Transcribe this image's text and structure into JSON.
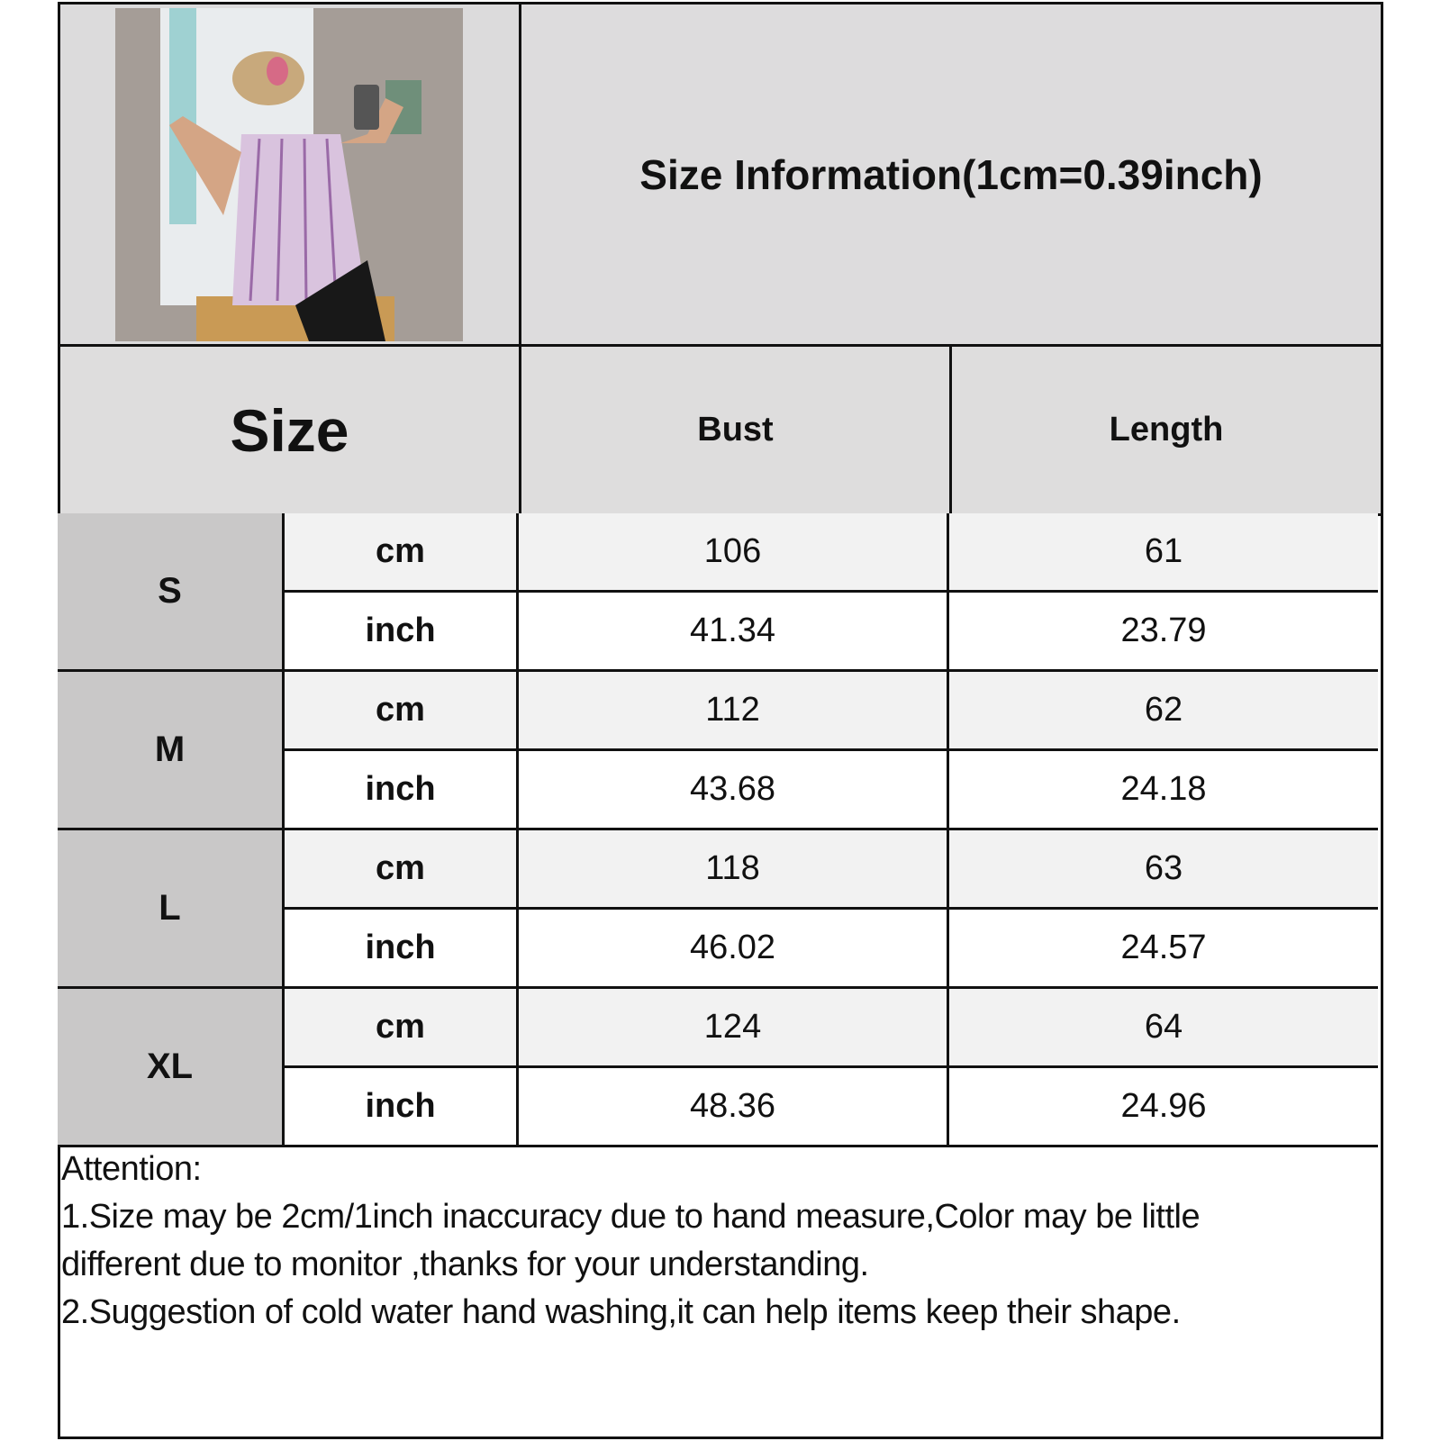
{
  "title": "Size Information(1cm=0.39inch)",
  "headers": {
    "size": "Size",
    "bust": "Bust",
    "length": "Length"
  },
  "rows": [
    {
      "size": "S",
      "cm": {
        "unit": "cm",
        "bust": "106",
        "length": "61"
      },
      "inch": {
        "unit": "inch",
        "bust": "41.34",
        "length": "23.79"
      }
    },
    {
      "size": "M",
      "cm": {
        "unit": "cm",
        "bust": "112",
        "length": "62"
      },
      "inch": {
        "unit": "inch",
        "bust": "43.68",
        "length": "24.18"
      }
    },
    {
      "size": "L",
      "cm": {
        "unit": "cm",
        "bust": "118",
        "length": "63"
      },
      "inch": {
        "unit": "inch",
        "bust": "46.02",
        "length": "24.57"
      }
    },
    {
      "size": "XL",
      "cm": {
        "unit": "cm",
        "bust": "124",
        "length": "64"
      },
      "inch": {
        "unit": "inch",
        "bust": "48.36",
        "length": "24.96"
      }
    }
  ],
  "notes": {
    "heading": "Attention:",
    "line1": "1.Size may be 2cm/1inch inaccuracy due to hand measure,Color may be little",
    "line2": "different due to monitor ,thanks for your understanding.",
    "line3": "2.Suggestion of cold water hand washing,it can help items keep their shape."
  }
}
